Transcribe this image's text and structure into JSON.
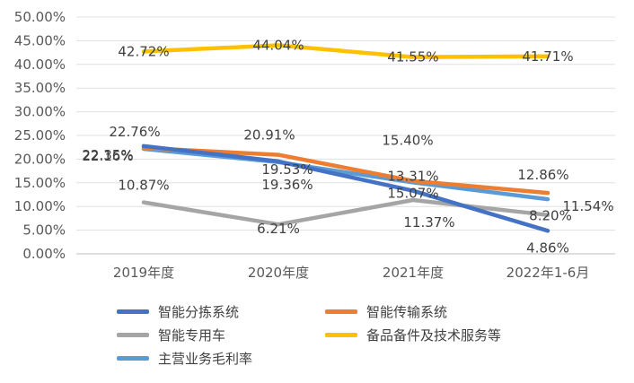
{
  "chart_data": {
    "type": "line",
    "categories": [
      "2019年度",
      "2020年度",
      "2021年度",
      "2022年1-6月"
    ],
    "y_ticks": [
      "0.00%",
      "5.00%",
      "10.00%",
      "15.00%",
      "20.00%",
      "25.00%",
      "30.00%",
      "35.00%",
      "40.00%",
      "45.00%",
      "50.00%"
    ],
    "ylim": [
      0,
      50
    ],
    "grid": true,
    "legend_position": "bottom",
    "series": [
      {
        "name": "智能分拣系统",
        "color": "#4472C4",
        "values": [
          22.76,
          19.53,
          13.31,
          4.86
        ],
        "labels": [
          "22.76%",
          "19.53%",
          "13.31%",
          "4.86%"
        ]
      },
      {
        "name": "智能传输系统",
        "color": "#ED7D31",
        "values": [
          22.35,
          20.91,
          15.4,
          12.86
        ],
        "labels": [
          "22.35%",
          "20.91%",
          "15.40%",
          "12.86%"
        ]
      },
      {
        "name": "智能专用车",
        "color": "#A5A5A5",
        "values": [
          10.87,
          6.21,
          11.37,
          8.2
        ],
        "labels": [
          "10.87%",
          "6.21%",
          "11.37%",
          "8.20%"
        ]
      },
      {
        "name": "备品备件及技术服务等",
        "color": "#FFC000",
        "values": [
          42.72,
          44.04,
          41.55,
          41.71
        ],
        "labels": [
          "42.72%",
          "44.04%",
          "41.55%",
          "41.71%"
        ]
      },
      {
        "name": "主营业务毛利率",
        "color": "#5B9BD5",
        "values": [
          22.16,
          19.36,
          15.07,
          11.54
        ],
        "labels": [
          "22.16%",
          "19.36%",
          "15.07%",
          "11.54%"
        ]
      }
    ]
  }
}
